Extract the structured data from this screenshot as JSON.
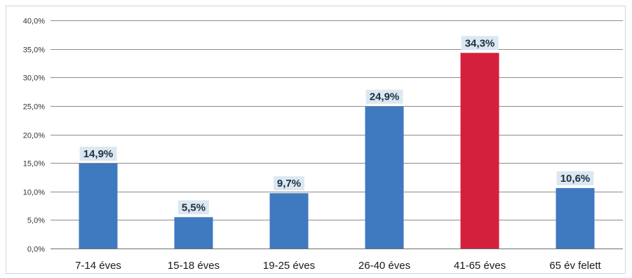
{
  "chart_data": {
    "type": "bar",
    "categories": [
      "7-14 éves",
      "15-18 éves",
      "19-25 éves",
      "26-40 éves",
      "41-65 éves",
      "65 év felett"
    ],
    "values": [
      14.9,
      5.5,
      9.7,
      24.9,
      34.3,
      10.6
    ],
    "data_labels": [
      "14,9%",
      "5,5%",
      "9,7%",
      "24,9%",
      "34,3%",
      "10,6%"
    ],
    "y_tick_labels": [
      "0,0%",
      "5,0%",
      "10,0%",
      "15,0%",
      "20,0%",
      "25,0%",
      "30,0%",
      "35,0%",
      "40,0%"
    ],
    "ylim": [
      0,
      40
    ],
    "grid": true,
    "title": "",
    "xlabel": "",
    "ylabel": "",
    "colors": {
      "bar": "#3f79c0",
      "highlight_bar": "#d4203c",
      "highlight_index": 4,
      "label_bg": "#dbe8f2",
      "gridline": "#8c8c8c"
    }
  }
}
